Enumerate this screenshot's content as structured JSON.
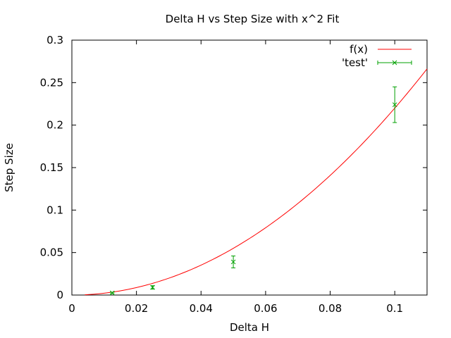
{
  "chart_data": {
    "type": "scatter",
    "title": "Delta H vs Step Size with x^2 Fit",
    "xlabel": "Delta H",
    "ylabel": "Step Size",
    "xlim": [
      0,
      0.11
    ],
    "ylim": [
      0,
      0.3
    ],
    "x_ticks": [
      "0",
      "0.02",
      "0.04",
      "0.06",
      "0.08",
      "0.1"
    ],
    "y_ticks": [
      "0",
      "0.05",
      "0.1",
      "0.15",
      "0.2",
      "0.25",
      "0.3"
    ],
    "legend_position": "top-right",
    "grid": false,
    "series": [
      {
        "name": "f(x)",
        "kind": "line",
        "color": "#ff0000",
        "function": "x^2",
        "coefficient": 22.0
      },
      {
        "name": "'test'",
        "kind": "points-with-errorbars",
        "color": "#00a000",
        "points": [
          {
            "x": 0.0125,
            "y": 0.0025,
            "err": 0.0008
          },
          {
            "x": 0.025,
            "y": 0.009,
            "err": 0.002
          },
          {
            "x": 0.05,
            "y": 0.039,
            "err": 0.007
          },
          {
            "x": 0.1,
            "y": 0.224,
            "err": 0.021
          }
        ]
      }
    ]
  }
}
